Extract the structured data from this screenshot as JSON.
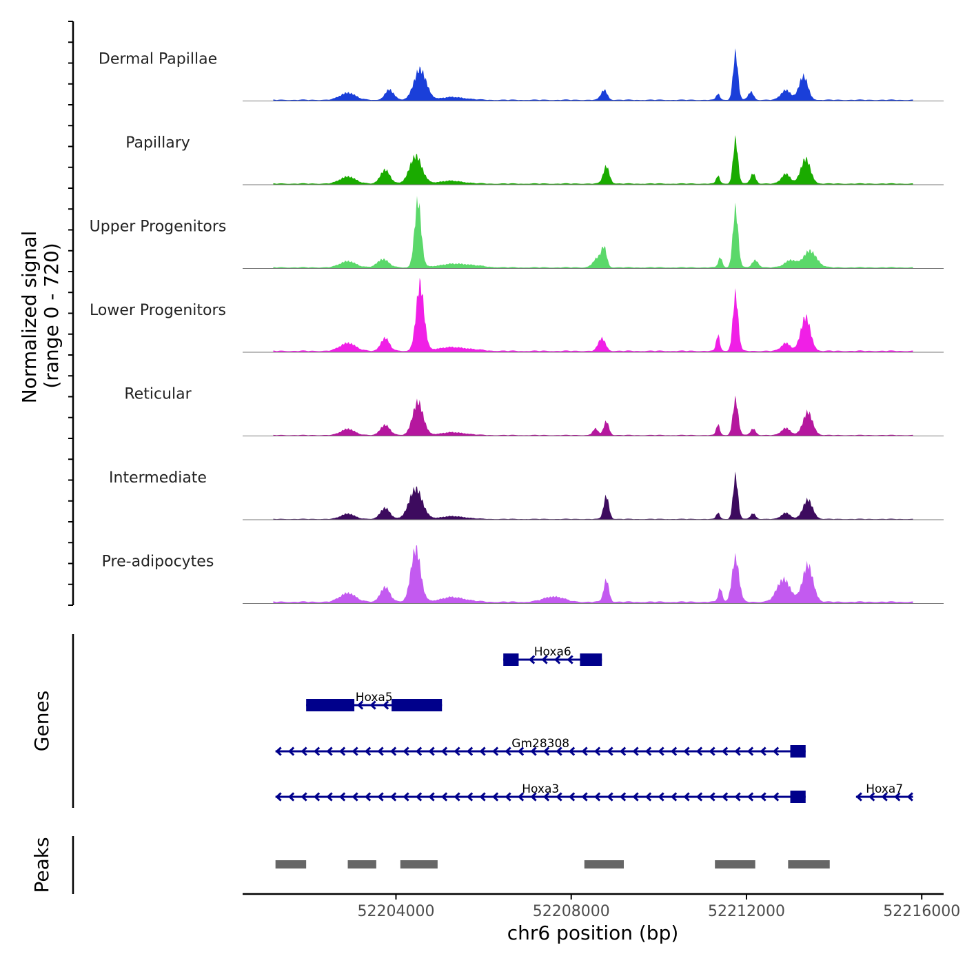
{
  "chart_data": {
    "type": "area",
    "title": "",
    "ylabel_line1": "Normalized signal",
    "ylabel_line2": "(range 0 - 720)",
    "y_range": [
      0,
      720
    ],
    "xlabel": "chr6 position (bp)",
    "xlim": [
      52200500,
      52216500
    ],
    "x_ticks": [
      {
        "value": 52204000,
        "label": "52204000"
      },
      {
        "value": 52208000,
        "label": "52208000"
      },
      {
        "value": 52212000,
        "label": "52212000"
      },
      {
        "value": 52216000,
        "label": "52216000"
      }
    ],
    "signal_start": 52201200,
    "signal_end": 52215800,
    "tracks": [
      {
        "name": "Dermal Papillae",
        "color": "#1a3fd9",
        "baseline": 15,
        "peaks": [
          [
            52202900,
            80,
            170
          ],
          [
            52203850,
            110,
            100
          ],
          [
            52204550,
            330,
            140
          ],
          [
            52205300,
            30,
            300
          ],
          [
            52208750,
            110,
            70
          ],
          [
            52211350,
            70,
            40
          ],
          [
            52211750,
            510,
            55
          ],
          [
            52212100,
            90,
            60
          ],
          [
            52212900,
            110,
            110
          ],
          [
            52213300,
            260,
            100
          ]
        ]
      },
      {
        "name": "Papillary",
        "color": "#1aab00",
        "baseline": 15,
        "peaks": [
          [
            52202900,
            80,
            170
          ],
          [
            52203750,
            150,
            110
          ],
          [
            52204450,
            300,
            140
          ],
          [
            52205250,
            30,
            300
          ],
          [
            52208800,
            190,
            70
          ],
          [
            52211350,
            90,
            40
          ],
          [
            52211750,
            480,
            55
          ],
          [
            52212150,
            110,
            60
          ],
          [
            52212900,
            110,
            100
          ],
          [
            52213350,
            270,
            110
          ]
        ]
      },
      {
        "name": "Upper Progenitors",
        "color": "#5bd86a",
        "baseline": 15,
        "peaks": [
          [
            52202900,
            70,
            170
          ],
          [
            52203700,
            90,
            130
          ],
          [
            52204500,
            720,
            75
          ],
          [
            52205400,
            40,
            400
          ],
          [
            52208600,
            100,
            100
          ],
          [
            52208750,
            200,
            60
          ],
          [
            52211400,
            110,
            45
          ],
          [
            52211750,
            640,
            60
          ],
          [
            52212200,
            80,
            70
          ],
          [
            52213000,
            80,
            130
          ],
          [
            52213450,
            180,
            150
          ]
        ]
      },
      {
        "name": "Lower Progenitors",
        "color": "#f01fe6",
        "baseline": 18,
        "peaks": [
          [
            52202900,
            90,
            170
          ],
          [
            52203750,
            140,
            100
          ],
          [
            52204550,
            720,
            90
          ],
          [
            52205300,
            40,
            400
          ],
          [
            52208700,
            140,
            80
          ],
          [
            52211350,
            180,
            40
          ],
          [
            52211750,
            620,
            60
          ],
          [
            52212900,
            90,
            100
          ],
          [
            52213350,
            370,
            110
          ]
        ]
      },
      {
        "name": "Reticular",
        "color": "#b5179e",
        "baseline": 12,
        "peaks": [
          [
            52202900,
            70,
            150
          ],
          [
            52203750,
            110,
            110
          ],
          [
            52204500,
            360,
            120
          ],
          [
            52205300,
            30,
            300
          ],
          [
            52208550,
            70,
            60
          ],
          [
            52208800,
            150,
            60
          ],
          [
            52211350,
            120,
            40
          ],
          [
            52211750,
            390,
            60
          ],
          [
            52212150,
            70,
            60
          ],
          [
            52212900,
            80,
            100
          ],
          [
            52213400,
            250,
            110
          ]
        ]
      },
      {
        "name": "Intermediate",
        "color": "#3d0b5e",
        "baseline": 10,
        "peaks": [
          [
            52202900,
            60,
            150
          ],
          [
            52203750,
            120,
            110
          ],
          [
            52204450,
            330,
            150
          ],
          [
            52205300,
            30,
            300
          ],
          [
            52208800,
            250,
            60
          ],
          [
            52211350,
            70,
            40
          ],
          [
            52211750,
            470,
            55
          ],
          [
            52212150,
            60,
            60
          ],
          [
            52212900,
            70,
            100
          ],
          [
            52213400,
            210,
            110
          ]
        ]
      },
      {
        "name": "Pre-adipocytes",
        "color": "#c35af0",
        "baseline": 22,
        "peaks": [
          [
            52202900,
            100,
            170
          ],
          [
            52203750,
            160,
            110
          ],
          [
            52204450,
            580,
            110
          ],
          [
            52205300,
            50,
            300
          ],
          [
            52207600,
            60,
            220
          ],
          [
            52208800,
            240,
            60
          ],
          [
            52211400,
            150,
            45
          ],
          [
            52211750,
            480,
            80
          ],
          [
            52212850,
            250,
            150
          ],
          [
            52213400,
            400,
            120
          ]
        ]
      }
    ],
    "genes_label": "Genes",
    "genes": [
      {
        "name": "Hoxa6",
        "strand": "-",
        "row": 0,
        "start": 52206450,
        "end": 52208700,
        "exons": [
          [
            52206450,
            52206800
          ],
          [
            52208200,
            52208700
          ]
        ]
      },
      {
        "name": "Hoxa5",
        "strand": "-",
        "row": 1,
        "start": 52201950,
        "end": 52205050,
        "exons": [
          [
            52201950,
            52203050
          ],
          [
            52203900,
            52205050
          ]
        ]
      },
      {
        "name": "Gm28308",
        "strand": "-",
        "row": 2,
        "start": 52201250,
        "end": 52213350,
        "exons": [
          [
            52213000,
            52213350
          ]
        ]
      },
      {
        "name": "Hoxa3",
        "strand": "-",
        "row": 3,
        "start": 52201250,
        "end": 52213350,
        "exons": [
          [
            52213000,
            52213350
          ]
        ]
      },
      {
        "name": "Hoxa7",
        "strand": "-",
        "row": 3,
        "start": 52214500,
        "end": 52215800,
        "exons": []
      }
    ],
    "peaks_label": "Peaks",
    "peak_regions": [
      [
        52201250,
        52201950
      ],
      [
        52202900,
        52203550
      ],
      [
        52204100,
        52204950
      ],
      [
        52208300,
        52209200
      ],
      [
        52211280,
        52212200
      ],
      [
        52212950,
        52213900
      ]
    ]
  }
}
